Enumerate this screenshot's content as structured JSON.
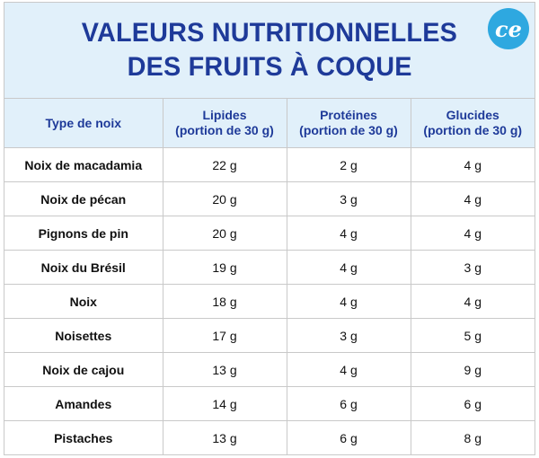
{
  "title": {
    "line1": "VALEURS NUTRITIONNELLES",
    "line2": "DES FRUITS À COQUE"
  },
  "logo": {
    "text": "ce",
    "color": "#2ea8e0"
  },
  "table": {
    "headers": [
      {
        "main": "Type de noix",
        "sub": ""
      },
      {
        "main": "Lipides",
        "sub": "(portion de 30 g)"
      },
      {
        "main": "Protéines",
        "sub": "(portion de 30 g)"
      },
      {
        "main": "Glucides",
        "sub": "(portion de 30 g)"
      }
    ],
    "rows": [
      [
        "Noix de macadamia",
        "22 g",
        "2 g",
        "4 g"
      ],
      [
        "Noix de pécan",
        "20 g",
        "3 g",
        "4 g"
      ],
      [
        "Pignons de pin",
        "20 g",
        "4 g",
        "4 g"
      ],
      [
        "Noix du Brésil",
        "19 g",
        "4 g",
        "3 g"
      ],
      [
        "Noix",
        "18 g",
        "4 g",
        "4 g"
      ],
      [
        "Noisettes",
        "17 g",
        "3 g",
        "5 g"
      ],
      [
        "Noix de cajou",
        "13 g",
        "4 g",
        "9 g"
      ],
      [
        "Amandes",
        "14 g",
        "6 g",
        "6 g"
      ],
      [
        "Pistaches",
        "13 g",
        "6 g",
        "8 g"
      ]
    ]
  },
  "colors": {
    "title": "#1e3a99",
    "header_bg": "#e1f0fa",
    "border": "#c9c9c9"
  }
}
